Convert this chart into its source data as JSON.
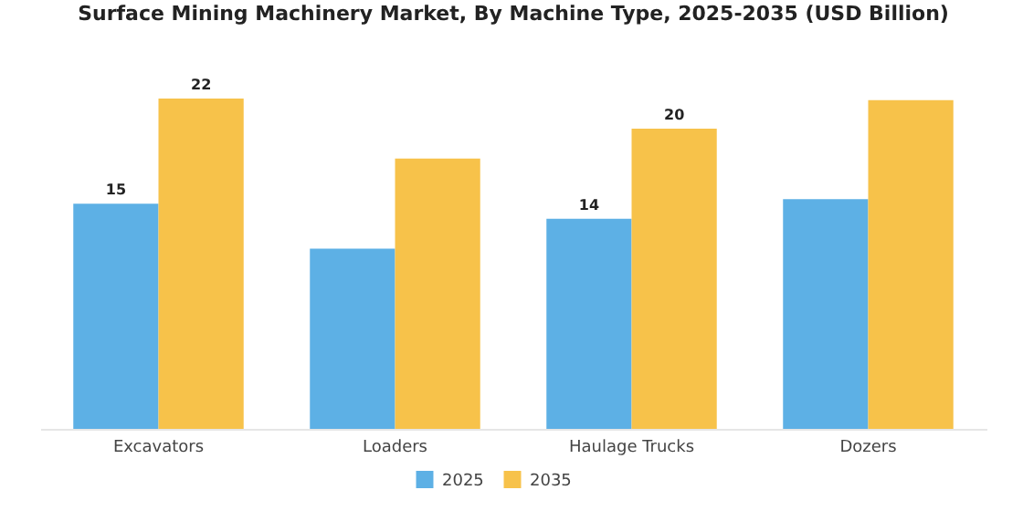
{
  "chart_data": {
    "type": "bar",
    "title": "Surface Mining Machinery Market, By Machine Type, 2025-2035 (USD Billion)",
    "categories": [
      "Excavators",
      "Loaders",
      "Haulage Trucks",
      "Dozers"
    ],
    "series": [
      {
        "name": "2025",
        "color": "#5db0e5",
        "values": [
          15,
          12,
          14,
          15.3
        ],
        "value_labels": [
          "15",
          null,
          "14",
          null
        ]
      },
      {
        "name": "2035",
        "color": "#f7c24a",
        "values": [
          22,
          18,
          20,
          21.9
        ],
        "value_labels": [
          "22",
          null,
          "20",
          null
        ]
      }
    ],
    "legend": "bottom"
  }
}
